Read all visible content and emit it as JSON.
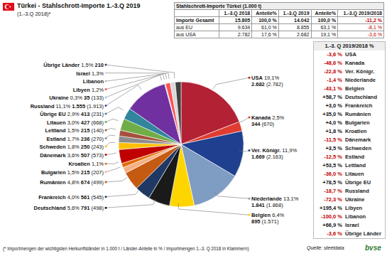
{
  "chart_data": {
    "type": "pie",
    "title": "Türkei - Stahlschrott-Importe 1.-3.Q 2019",
    "subtitle": "(1.-3.Q 2018)*",
    "categories": [
      "USA",
      "Kanada",
      "Ver. Königr.",
      "Niederlande",
      "Belgien",
      "Deutschland",
      "Frankreich",
      "Rumänien",
      "Bulgarien",
      "Kroatien",
      "Dänemark",
      "Schweden",
      "Estland",
      "Lettland",
      "Litauen",
      "Übrige EU",
      "Russland",
      "Ukraine",
      "Libyen",
      "Libanon",
      "Israel",
      "Übrige Länder"
    ],
    "values": [
      2682,
      344,
      1669,
      1841,
      895,
      791,
      561,
      674,
      215,
      155,
      507,
      250,
      236,
      215,
      427,
      413,
      1555,
      35,
      168,
      0,
      183,
      210
    ],
    "value_labels": [
      "2.682",
      "344",
      "1.669",
      "1.841",
      "895",
      "791",
      "561",
      "674",
      "215",
      null,
      "507",
      "250",
      "236",
      "215",
      "427",
      "413",
      "1.555",
      "35",
      null,
      null,
      null,
      "210"
    ],
    "values_2018": [
      2782,
      670,
      2163,
      1868,
      1571,
      498,
      545,
      499,
      207,
      null,
      573,
      243,
      270,
      140,
      668,
      231,
      1913,
      133,
      null,
      null,
      null,
      null
    ],
    "value_labels_2018": [
      "(2.782)",
      "(670)",
      "(2.163)",
      "(1.868)",
      "(1.571)",
      "(498)",
      "(545)",
      "(499)",
      "(207)",
      null,
      "(573)",
      "(243)",
      "(270)",
      "(140)",
      "(668)",
      "(231)",
      "(1.913)",
      "(133)",
      null,
      null,
      null,
      null
    ],
    "shares": [
      19.1,
      2.5,
      11.9,
      13.1,
      6.4,
      5.6,
      4.0,
      4.8,
      1.5,
      1.1,
      3.6,
      1.8,
      1.7,
      1.5,
      3.0,
      2.9,
      11.1,
      0.3,
      1.2,
      null,
      1.3,
      1.5
    ],
    "share_labels": [
      "19,1%",
      "2,5%",
      "11,9%",
      "13,1%",
      "6,4%",
      "5,6%",
      "4,0%",
      "4,8%",
      "1,5%",
      "1,1%",
      "3,6%",
      "1,8%",
      "1,7%",
      "1,5%",
      "3,0%",
      "2,9%",
      "11,1%",
      "0,3%",
      "1,2%",
      null,
      "1,3%",
      "1,5%"
    ],
    "colors": [
      "#b22234",
      "#e03c31",
      "#1f3f8f",
      "#7f9cc2",
      "#ffd500",
      "#1a1a1a",
      "#1f3864",
      "#c55a11",
      "#f4b183",
      "#e46c0a",
      "#c00000",
      "#ffc000",
      "#8c8c8c",
      "#a5503c",
      "#70ad47",
      "#31859c",
      "#7030a0",
      "#9dc3e6",
      "#ff5050",
      "#bfbfbf",
      "#d9d9d9",
      "#404040"
    ],
    "data_labels": true,
    "change_header": "1.-3. Q 2019/2018 %",
    "changes": [
      -3.6,
      -48.6,
      -22.8,
      -1.4,
      -43.1,
      58.7,
      3.0,
      35.0,
      4.0,
      1.8,
      -11.5,
      3.5,
      -12.5,
      53.5,
      -36.0,
      78.5,
      -18.7,
      -72.3,
      195.4,
      -100.0,
      66.9,
      -3.6
    ],
    "change_labels": [
      "-3,6 %",
      "-48,6 %",
      "-22,8 %",
      "-1,4 %",
      "-43,1 %",
      "+58,7 %",
      "+3,0 %",
      "+35,0 %",
      "+4,0 %",
      "+1,8 %",
      "-11,5 %",
      "+3,5 %",
      "-12,5 %",
      "+53,5 %",
      "-36,0 %",
      "+78,5 %",
      "-18,7 %",
      "-72,3 %",
      "+195,4 %",
      "-100,0 %",
      "+66,9 %",
      "-3,6 %"
    ],
    "table": {
      "title": "Stahlschrott-Importe Türkei (1.000 t)",
      "columns": [
        "1.-3.Q 2018",
        "Anteile%",
        "1.-3.Q 2019",
        "Anteile%",
        "1.-3.Q 2019/2018"
      ],
      "rows": [
        {
          "label": "Importe Gesamt",
          "cells": [
            "15.805",
            "100,0 %",
            "14.042",
            "100,0 %",
            "-11,2 %"
          ]
        },
        {
          "label": "aus EU",
          "cells": [
            "9.634",
            "61,0 %",
            "8.855",
            "63,1 %",
            "-8,1 %"
          ]
        },
        {
          "label": "aus USA",
          "cells": [
            "2.782",
            "17,6 %",
            "2.682",
            "19,1 %",
            "-3,6 %"
          ]
        }
      ]
    },
    "footnote": "(* Importmengen der wichtigsten Herkunftsländer in 1.000 t / Länder-Anteile in % / Importmengen 1.-3. Q 2018 in Klammern)",
    "source": "Quelle: steeldata",
    "logo": "bvse"
  }
}
